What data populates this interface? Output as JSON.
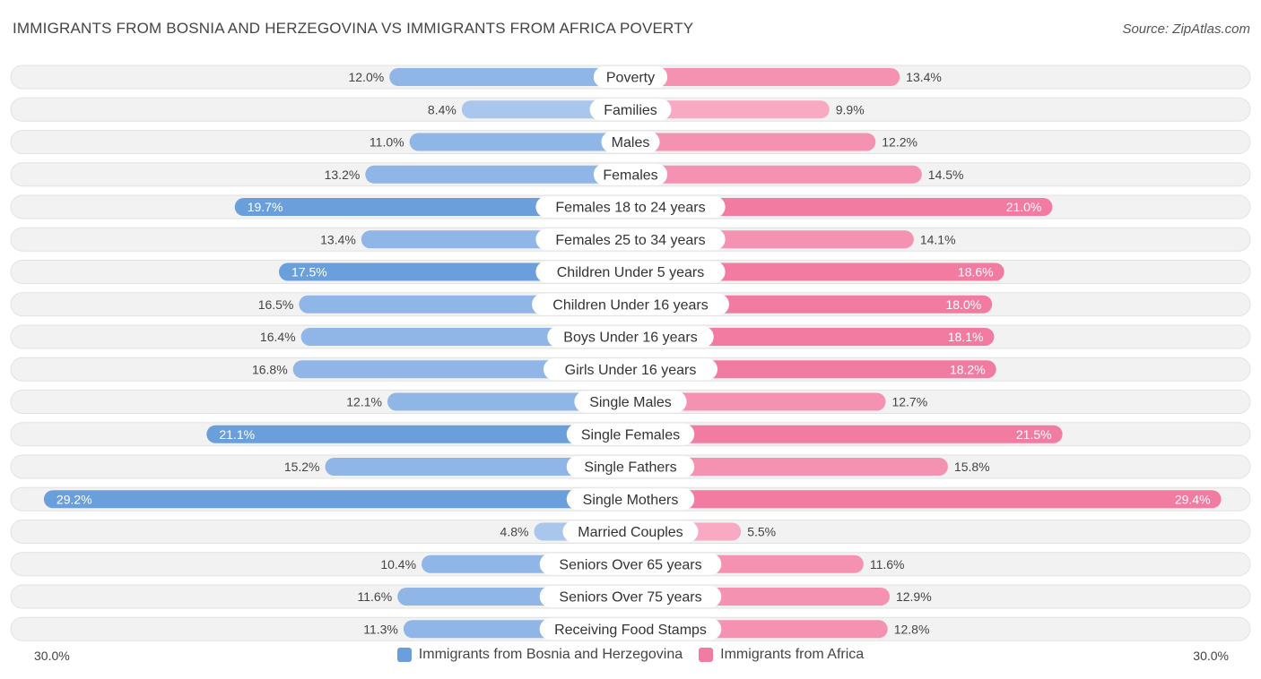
{
  "header": {
    "title": "IMMIGRANTS FROM BOSNIA AND HERZEGOVINA VS IMMIGRANTS FROM AFRICA POVERTY",
    "source": "Source: ZipAtlas.com"
  },
  "colors": {
    "left_strong": "#6a9fdc",
    "left_light": "#a9c6ec",
    "right_strong": "#f27ca1",
    "right_light": "#f7aac2",
    "row_bg": "#f2f2f2",
    "row_border": "#e2e2e2"
  },
  "axis": {
    "left_label": "30.0%",
    "right_label": "30.0%"
  },
  "legend": {
    "left": "Immigrants from Bosnia and Herzegovina",
    "right": "Immigrants from Africa"
  },
  "chart_data": {
    "type": "bar",
    "orientation": "horizontal-diverging",
    "title": "IMMIGRANTS FROM BOSNIA AND HERZEGOVINA VS IMMIGRANTS FROM AFRICA POVERTY",
    "xlim": [
      0,
      30
    ],
    "categories": [
      "Poverty",
      "Families",
      "Males",
      "Females",
      "Females 18 to 24 years",
      "Females 25 to 34 years",
      "Children Under 5 years",
      "Children Under 16 years",
      "Boys Under 16 years",
      "Girls Under 16 years",
      "Single Males",
      "Single Females",
      "Single Fathers",
      "Single Mothers",
      "Married Couples",
      "Seniors Over 65 years",
      "Seniors Over 75 years",
      "Receiving Food Stamps"
    ],
    "series": [
      {
        "name": "Immigrants from Bosnia and Herzegovina",
        "values": [
          12.0,
          8.4,
          11.0,
          13.2,
          19.7,
          13.4,
          17.5,
          16.5,
          16.4,
          16.8,
          12.1,
          21.1,
          15.2,
          29.2,
          4.8,
          10.4,
          11.6,
          11.3
        ],
        "labels": [
          "12.0%",
          "8.4%",
          "11.0%",
          "13.2%",
          "19.7%",
          "13.4%",
          "17.5%",
          "16.5%",
          "16.4%",
          "16.8%",
          "12.1%",
          "21.1%",
          "15.2%",
          "29.2%",
          "4.8%",
          "10.4%",
          "11.6%",
          "11.3%"
        ]
      },
      {
        "name": "Immigrants from Africa",
        "values": [
          13.4,
          9.9,
          12.2,
          14.5,
          21.0,
          14.1,
          18.6,
          18.0,
          18.1,
          18.2,
          12.7,
          21.5,
          15.8,
          29.4,
          5.5,
          11.6,
          12.9,
          12.8
        ],
        "labels": [
          "13.4%",
          "9.9%",
          "12.2%",
          "14.5%",
          "21.0%",
          "14.1%",
          "18.6%",
          "18.0%",
          "18.1%",
          "18.2%",
          "12.7%",
          "21.5%",
          "15.8%",
          "29.4%",
          "5.5%",
          "11.6%",
          "12.9%",
          "12.8%"
        ]
      }
    ]
  }
}
